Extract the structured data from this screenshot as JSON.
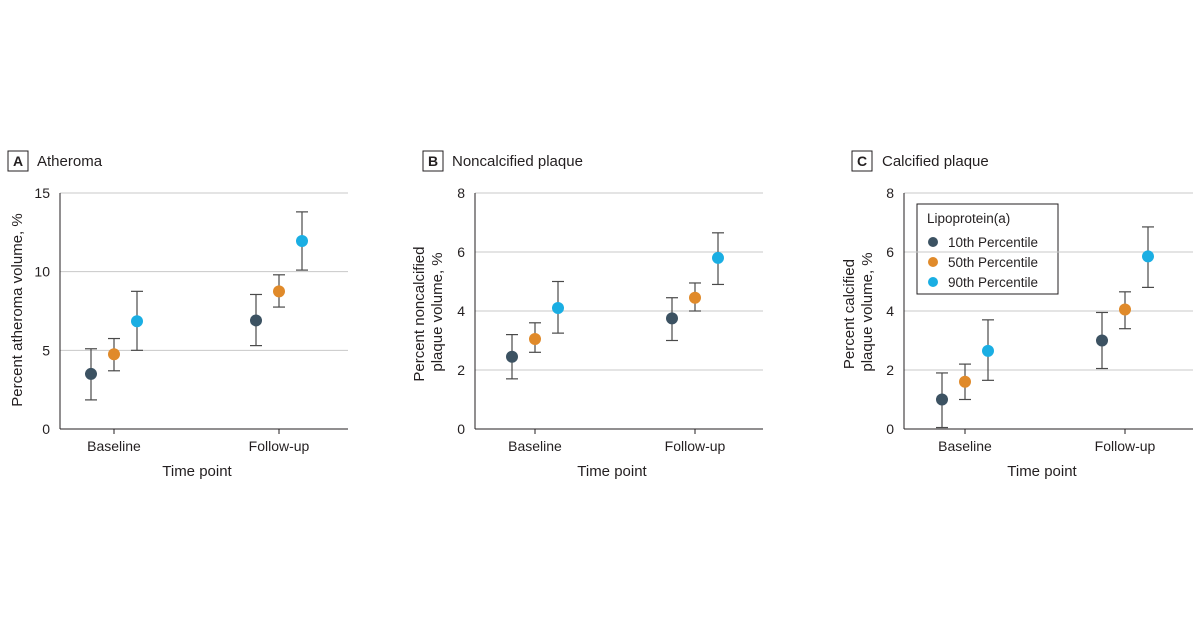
{
  "colors": {
    "10th": "#3c5262",
    "50th": "#e08a2a",
    "90th": "#1aaee3"
  },
  "legend": {
    "title": "Lipoprotein(a)",
    "entries": [
      "10th Percentile",
      "50th Percentile",
      "90th Percentile"
    ]
  },
  "chart_data": [
    {
      "type": "scatter",
      "panel_letter": "A",
      "title": "Atheroma",
      "xlabel": "Time point",
      "ylabel": "Percent atheroma volume, %",
      "categories": [
        "Baseline",
        "Follow-up"
      ],
      "ylim": [
        0,
        15
      ],
      "yticks": [
        "0",
        "5",
        "10",
        "15"
      ],
      "grid": true,
      "series": [
        {
          "name": "10th Percentile",
          "color_key": "10th",
          "points": [
            {
              "y": 3.5,
              "low": 1.85,
              "high": 5.1
            },
            {
              "y": 6.9,
              "low": 5.3,
              "high": 8.55
            }
          ]
        },
        {
          "name": "50th Percentile",
          "color_key": "50th",
          "points": [
            {
              "y": 4.75,
              "low": 3.7,
              "high": 5.75
            },
            {
              "y": 8.75,
              "low": 7.75,
              "high": 9.8
            }
          ]
        },
        {
          "name": "90th Percentile",
          "color_key": "90th",
          "points": [
            {
              "y": 6.85,
              "low": 5.0,
              "high": 8.75
            },
            {
              "y": 11.95,
              "low": 10.1,
              "high": 13.8
            }
          ]
        }
      ]
    },
    {
      "type": "scatter",
      "panel_letter": "B",
      "title": "Noncalcified plaque",
      "xlabel": "Time point",
      "ylabel": "Percent noncalcified plaque volume, %",
      "ylabel_lines": [
        "Percent noncalcified",
        "plaque volume, %"
      ],
      "categories": [
        "Baseline",
        "Follow-up"
      ],
      "ylim": [
        0,
        8
      ],
      "yticks": [
        "0",
        "2",
        "4",
        "6",
        "8"
      ],
      "grid": true,
      "series": [
        {
          "name": "10th Percentile",
          "color_key": "10th",
          "points": [
            {
              "y": 2.45,
              "low": 1.7,
              "high": 3.2
            },
            {
              "y": 3.75,
              "low": 3.0,
              "high": 4.45
            }
          ]
        },
        {
          "name": "50th Percentile",
          "color_key": "50th",
          "points": [
            {
              "y": 3.05,
              "low": 2.6,
              "high": 3.6
            },
            {
              "y": 4.45,
              "low": 4.0,
              "high": 4.95
            }
          ]
        },
        {
          "name": "90th Percentile",
          "color_key": "90th",
          "points": [
            {
              "y": 4.1,
              "low": 3.25,
              "high": 5.0
            },
            {
              "y": 5.8,
              "low": 4.9,
              "high": 6.65
            }
          ]
        }
      ]
    },
    {
      "type": "scatter",
      "panel_letter": "C",
      "title": "Calcified plaque",
      "xlabel": "Time point",
      "ylabel": "Percent calcified plaque volume, %",
      "ylabel_lines": [
        "Percent calcified",
        "plaque volume, %"
      ],
      "categories": [
        "Baseline",
        "Follow-up"
      ],
      "ylim": [
        0,
        8
      ],
      "yticks": [
        "0",
        "2",
        "4",
        "6",
        "8"
      ],
      "grid": true,
      "legend": "top-left",
      "series": [
        {
          "name": "10th Percentile",
          "color_key": "10th",
          "points": [
            {
              "y": 1.0,
              "low": 0.05,
              "high": 1.9
            },
            {
              "y": 3.0,
              "low": 2.05,
              "high": 3.95
            }
          ]
        },
        {
          "name": "50th Percentile",
          "color_key": "50th",
          "points": [
            {
              "y": 1.6,
              "low": 1.0,
              "high": 2.2
            },
            {
              "y": 4.05,
              "low": 3.4,
              "high": 4.65
            }
          ]
        },
        {
          "name": "90th Percentile",
          "color_key": "90th",
          "points": [
            {
              "y": 2.65,
              "low": 1.65,
              "high": 3.7
            },
            {
              "y": 5.85,
              "low": 4.8,
              "high": 6.85
            }
          ]
        }
      ]
    }
  ]
}
